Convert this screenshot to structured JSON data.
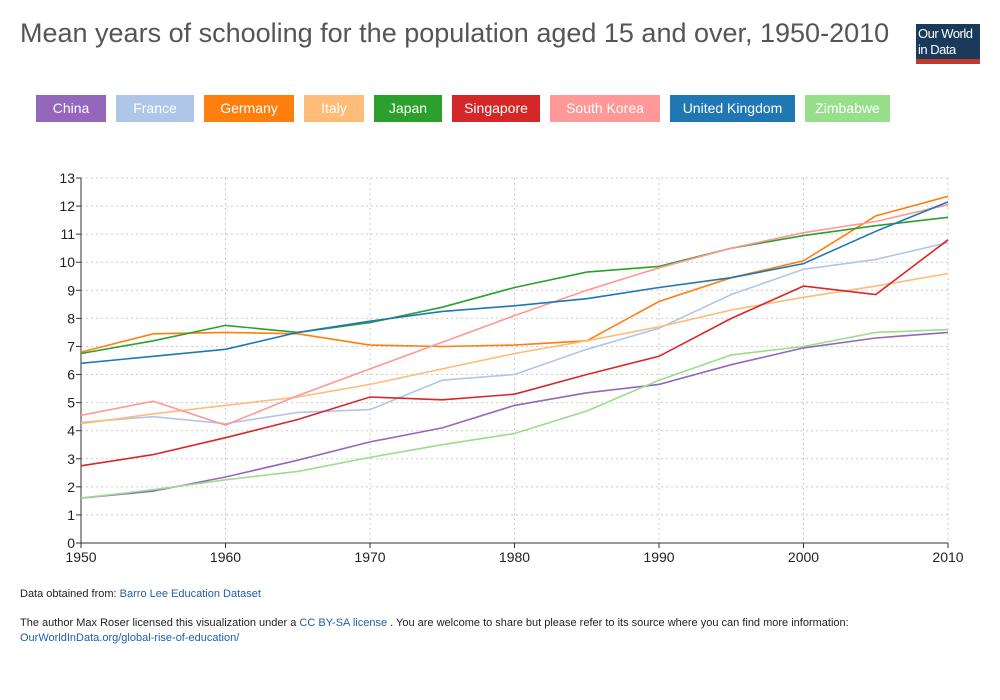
{
  "title": "Mean years of schooling for the population aged 15 and over, 1950-2010",
  "logo": {
    "line1": "Our World",
    "line2": "in Data"
  },
  "footer": {
    "source_prefix": "Data obtained from: ",
    "source_link": "Barro Lee Education Dataset",
    "license_prefix": "The author Max Roser licensed this visualization under a ",
    "license_link": "CC BY-SA license",
    "license_suffix": " . You are welcome to share but please refer to its source where you can find more information:",
    "url": "OurWorldInData.org/global-rise-of-education/"
  },
  "chart_data": {
    "type": "line",
    "title": "Mean years of schooling for the population aged 15 and over, 1950-2010",
    "xlabel": "",
    "ylabel": "",
    "xlim": [
      1950,
      2010
    ],
    "ylim": [
      0,
      13
    ],
    "xticks": [
      1950,
      1960,
      1970,
      1980,
      1990,
      2000,
      2010
    ],
    "yticks": [
      0,
      1,
      2,
      3,
      4,
      5,
      6,
      7,
      8,
      9,
      10,
      11,
      12,
      13
    ],
    "grid": true,
    "x": [
      1950,
      1955,
      1960,
      1965,
      1970,
      1975,
      1980,
      1985,
      1990,
      1995,
      2000,
      2005,
      2010
    ],
    "series": [
      {
        "name": "China",
        "color": "#9467bd",
        "values": [
          1.6,
          1.85,
          2.35,
          2.95,
          3.6,
          4.1,
          4.9,
          5.35,
          5.65,
          6.35,
          6.95,
          7.3,
          7.5
        ]
      },
      {
        "name": "France",
        "color": "#aec7e8",
        "values": [
          4.3,
          4.5,
          4.25,
          4.65,
          4.75,
          5.8,
          6.0,
          6.9,
          7.65,
          8.85,
          9.75,
          10.1,
          10.7
        ]
      },
      {
        "name": "Germany",
        "color": "#ff7f0e",
        "values": [
          6.8,
          7.45,
          7.5,
          7.45,
          7.05,
          7.0,
          7.05,
          7.2,
          8.6,
          9.45,
          10.05,
          11.65,
          12.35
        ]
      },
      {
        "name": "Italy",
        "color": "#ffbb78",
        "values": [
          4.25,
          4.6,
          4.9,
          5.2,
          5.65,
          6.2,
          6.75,
          7.2,
          7.7,
          8.3,
          8.75,
          9.15,
          9.6
        ]
      },
      {
        "name": "Japan",
        "color": "#2ca02c",
        "values": [
          6.75,
          7.2,
          7.75,
          7.5,
          7.85,
          8.4,
          9.1,
          9.65,
          9.85,
          10.5,
          10.95,
          11.3,
          11.6
        ]
      },
      {
        "name": "Singapore",
        "color": "#d62728",
        "values": [
          2.75,
          3.15,
          3.75,
          4.4,
          5.2,
          5.1,
          5.3,
          6.0,
          6.65,
          8.0,
          9.15,
          8.85,
          10.8
        ]
      },
      {
        "name": "South Korea",
        "color": "#ff9896",
        "values": [
          4.55,
          5.05,
          4.2,
          5.25,
          6.2,
          7.15,
          8.1,
          9.0,
          9.8,
          10.5,
          11.05,
          11.45,
          12.05
        ]
      },
      {
        "name": "United Kingdom",
        "color": "#1f77b4",
        "values": [
          6.4,
          6.65,
          6.9,
          7.5,
          7.9,
          8.25,
          8.45,
          8.7,
          9.1,
          9.45,
          9.95,
          11.1,
          12.15
        ]
      },
      {
        "name": "Zimbabwe",
        "color": "#98df8a",
        "values": [
          1.6,
          1.9,
          2.25,
          2.55,
          3.05,
          3.5,
          3.9,
          4.7,
          5.8,
          6.7,
          7.0,
          7.5,
          7.6
        ]
      }
    ]
  }
}
